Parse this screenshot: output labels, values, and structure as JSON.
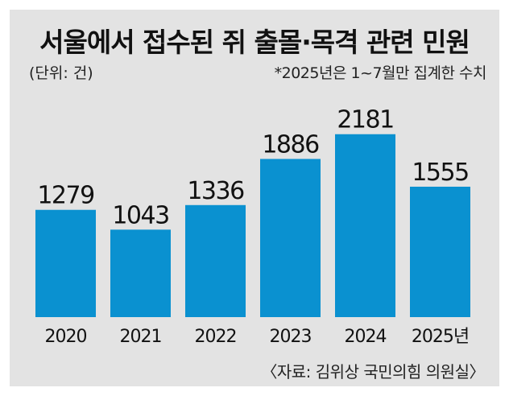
{
  "title": "서울에서 접수된 쥐 출몰·목격 관련 민원",
  "unit_label": "(단위: 건)",
  "note": "*2025년은 1~7월만 집계한 수치",
  "source": "〈자료: 김위상 국민의힘 의원실〉",
  "chart_data": {
    "type": "bar",
    "categories": [
      "2020",
      "2021",
      "2022",
      "2023",
      "2024",
      "2025년"
    ],
    "values": [
      1279,
      1043,
      1336,
      1886,
      2181,
      1555
    ],
    "title": "서울에서 접수된 쥐 출몰·목격 관련 민원",
    "xlabel": "",
    "ylabel": "",
    "bar_color": "#0a91d0",
    "background_color": "#e3e3e3",
    "grid": false,
    "legend": "none"
  }
}
